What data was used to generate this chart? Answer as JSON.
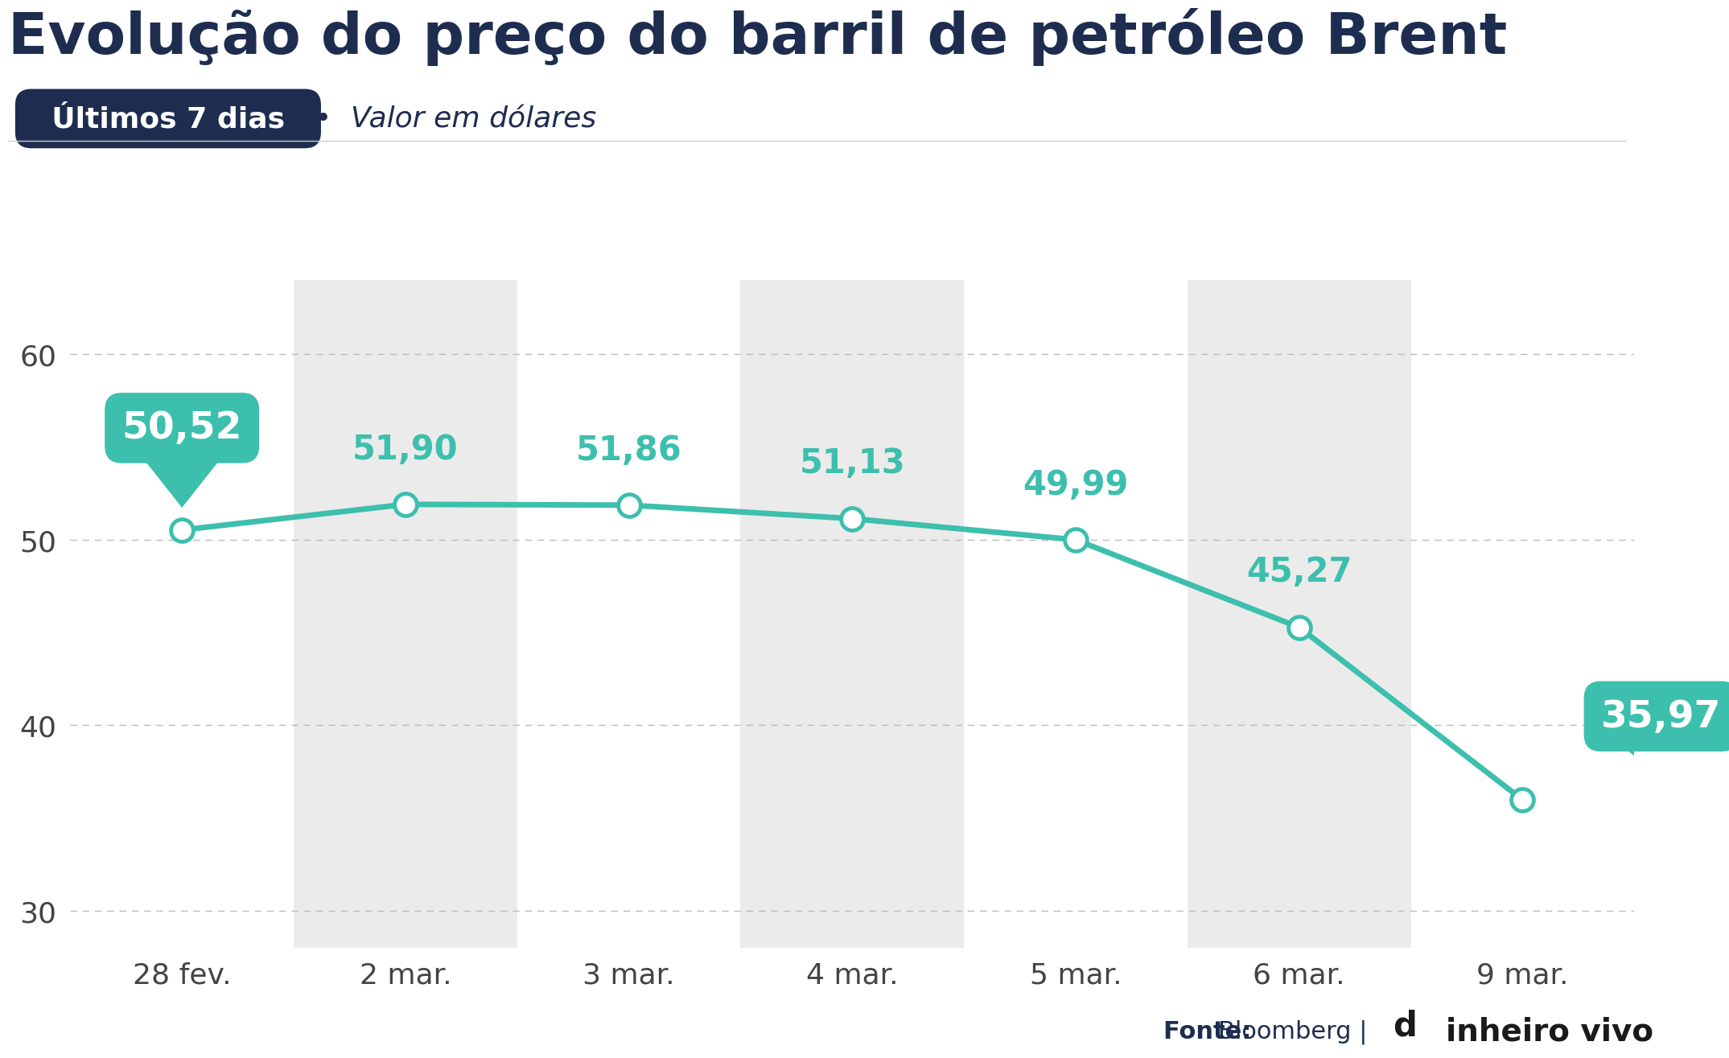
{
  "title": "Evolução do preço do barril de petróleo Brent",
  "subtitle_box_text": "Últimos 7 dias",
  "subtitle_note": "Valor em dólares",
  "categories": [
    "28 fev.",
    "2 mar.",
    "3 mar.",
    "4 mar.",
    "5 mar.",
    "6 mar.",
    "9 mar."
  ],
  "values": [
    50.52,
    51.9,
    51.86,
    51.13,
    49.99,
    45.27,
    35.97
  ],
  "labels": [
    "50,52",
    "51,90",
    "51,86",
    "51,13",
    "49,99",
    "45,27",
    "35,97"
  ],
  "ylim": [
    28,
    64
  ],
  "yticks": [
    30,
    40,
    50,
    60
  ],
  "line_color": "#3dbfad",
  "marker_fill": "#ffffff",
  "marker_edge": "#3dbfad",
  "special_indices": [
    0,
    6
  ],
  "special_bg_color": "#3dbfad",
  "special_text_color": "#ffffff",
  "normal_text_color": "#3dbfad",
  "title_color": "#1e2d4f",
  "subtitle_box_bg": "#1e2d4f",
  "subtitle_box_text_color": "#ffffff",
  "subtitle_note_color": "#1e2d4f",
  "bg_stripe_color": "#ebebeb",
  "stripe_indices": [
    1,
    3,
    5
  ],
  "tick_color": "#444444",
  "grid_color": "#bbbbbb",
  "background_color": "#ffffff",
  "title_fontsize": 52,
  "label_fontsize": 30,
  "tick_fontsize": 26,
  "subtitle_fontsize": 24,
  "fonte_fontsize": 22,
  "brand_fontsize": 28
}
